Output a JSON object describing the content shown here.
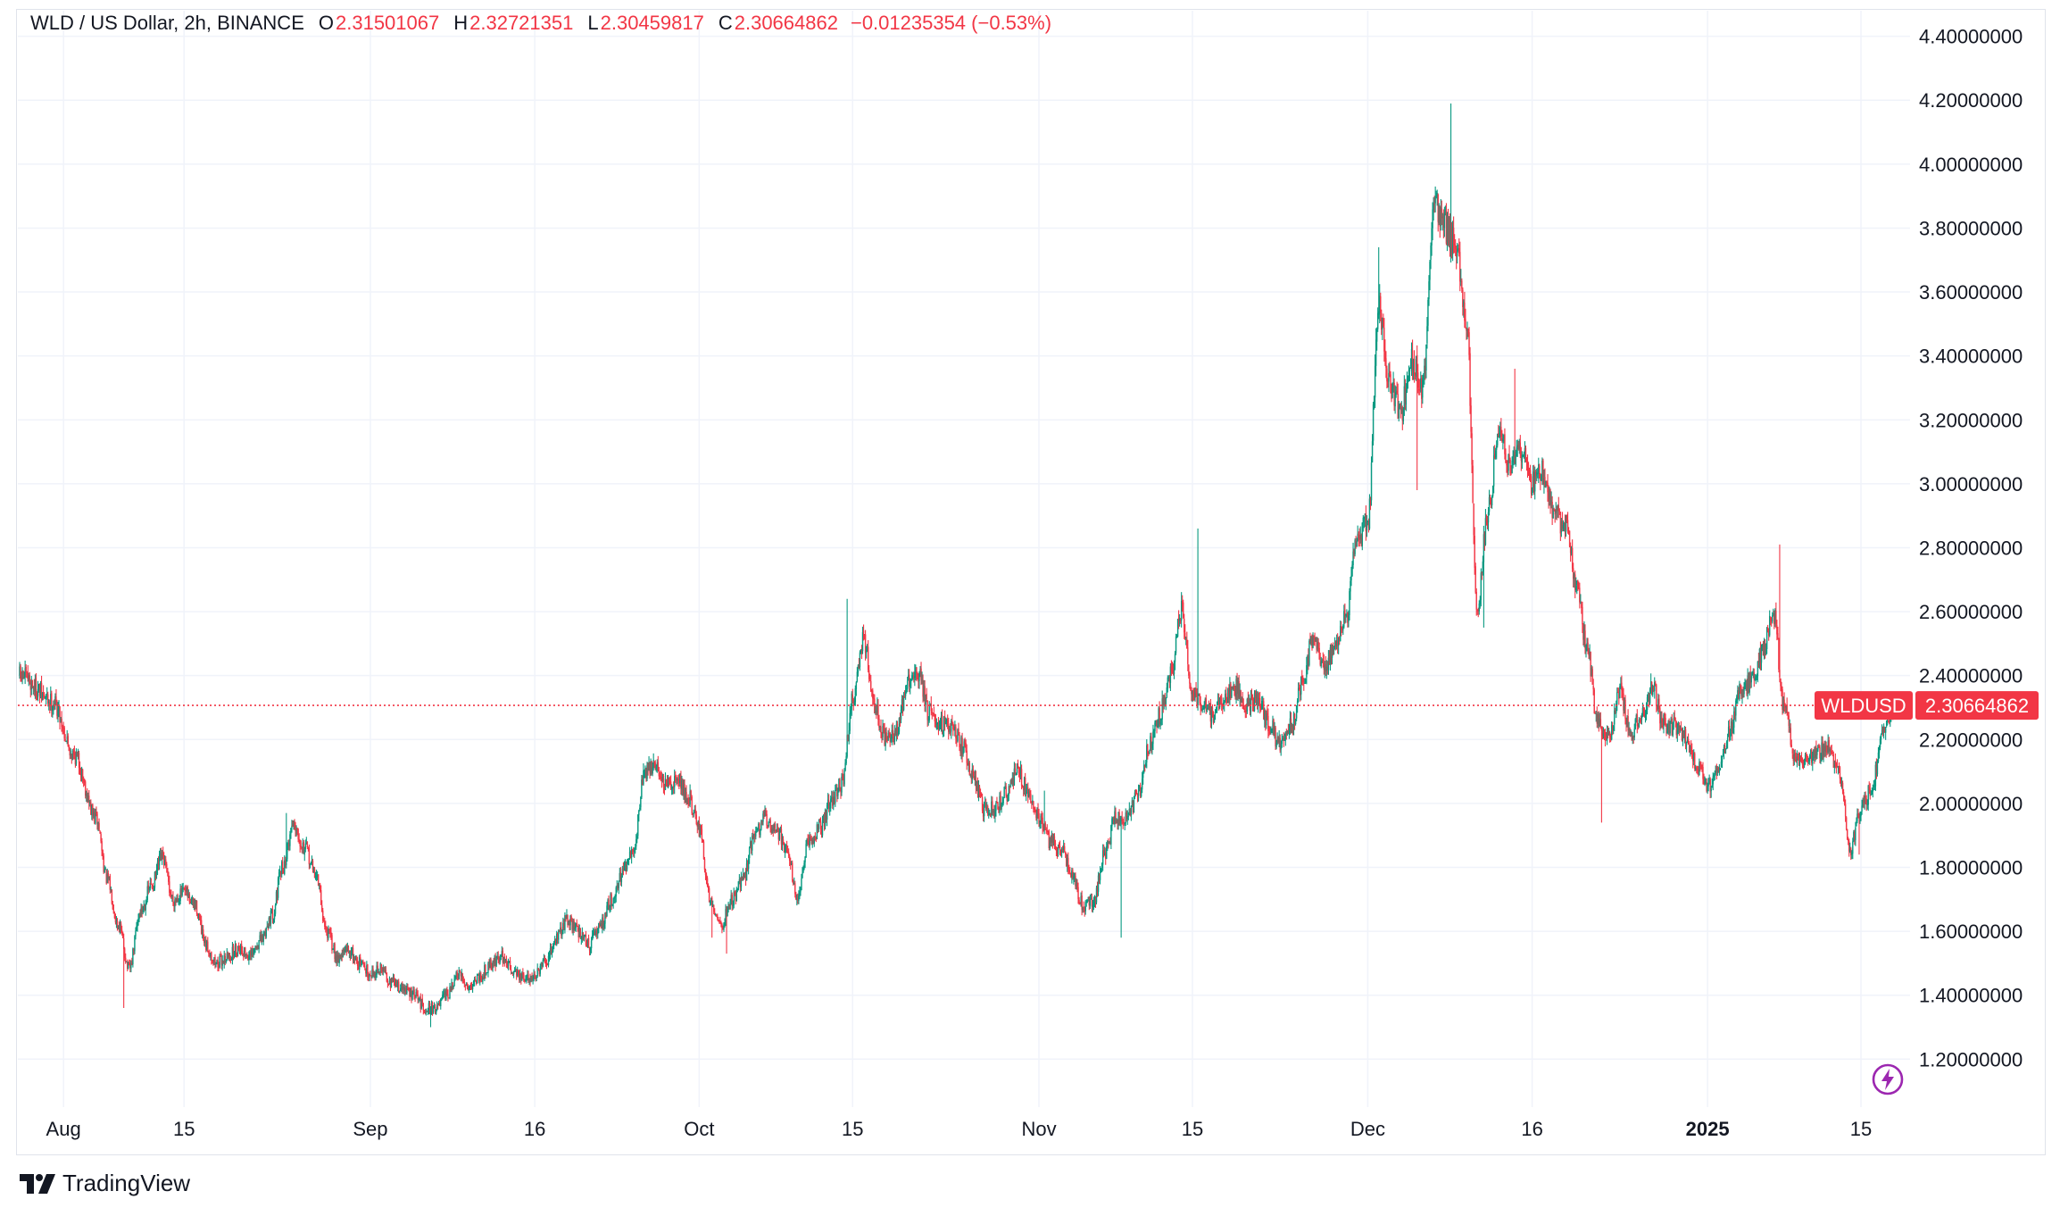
{
  "header": {
    "symbol_line": "WLD / US Dollar, 2h, BINANCE",
    "open_label": "O",
    "open_value": "2.31501067",
    "high_label": "H",
    "high_value": "2.32721351",
    "low_label": "L",
    "low_value": "2.30459817",
    "close_label": "C",
    "close_value": "2.30664862",
    "change": "−0.01235354 (−0.53%)"
  },
  "footer": {
    "brand": "TradingView"
  },
  "colors": {
    "up": "#089981",
    "down": "#f23645",
    "grid": "#f0f3fa",
    "axis_text": "#131722"
  },
  "chart_data": {
    "type": "candlestick",
    "title": "WLD / US Dollar, 2h, BINANCE",
    "ylim": [
      1.05,
      4.48
    ],
    "y_ticks": [
      "4.40000000",
      "4.20000000",
      "4.00000000",
      "3.80000000",
      "3.60000000",
      "3.40000000",
      "3.20000000",
      "3.00000000",
      "2.80000000",
      "2.60000000",
      "2.40000000",
      "2.20000000",
      "2.00000000",
      "1.80000000",
      "1.60000000",
      "1.40000000",
      "1.20000000"
    ],
    "x_ticks": [
      {
        "label": "Aug",
        "day": 4,
        "bold": false
      },
      {
        "label": "15",
        "day": 15,
        "bold": false
      },
      {
        "label": "Sep",
        "day": 32,
        "bold": false
      },
      {
        "label": "16",
        "day": 47,
        "bold": false
      },
      {
        "label": "Oct",
        "day": 62,
        "bold": false
      },
      {
        "label": "15",
        "day": 76,
        "bold": false
      },
      {
        "label": "Nov",
        "day": 93,
        "bold": false
      },
      {
        "label": "15",
        "day": 107,
        "bold": false
      },
      {
        "label": "Dec",
        "day": 123,
        "bold": false
      },
      {
        "label": "16",
        "day": 138,
        "bold": false
      },
      {
        "label": "2025",
        "day": 154,
        "bold": true
      },
      {
        "label": "15",
        "day": 168,
        "bold": false
      }
    ],
    "x_range_days": [
      0,
      171.5
    ],
    "price_anchors": [
      [
        0,
        2.4
      ],
      [
        3,
        2.32
      ],
      [
        5,
        2.15
      ],
      [
        7,
        1.95
      ],
      [
        8,
        1.76
      ],
      [
        9,
        1.62
      ],
      [
        10,
        1.48
      ],
      [
        11,
        1.66
      ],
      [
        12,
        1.74
      ],
      [
        13,
        1.83
      ],
      [
        14,
        1.7
      ],
      [
        15,
        1.72
      ],
      [
        16,
        1.68
      ],
      [
        17,
        1.55
      ],
      [
        18,
        1.5
      ],
      [
        19,
        1.52
      ],
      [
        20,
        1.55
      ],
      [
        21,
        1.52
      ],
      [
        22,
        1.57
      ],
      [
        23,
        1.65
      ],
      [
        24,
        1.8
      ],
      [
        25,
        1.94
      ],
      [
        26,
        1.86
      ],
      [
        27,
        1.78
      ],
      [
        28,
        1.6
      ],
      [
        29,
        1.52
      ],
      [
        30,
        1.54
      ],
      [
        31,
        1.5
      ],
      [
        32,
        1.47
      ],
      [
        33,
        1.48
      ],
      [
        34,
        1.44
      ],
      [
        35,
        1.42
      ],
      [
        36,
        1.4
      ],
      [
        37,
        1.36
      ],
      [
        38,
        1.36
      ],
      [
        39,
        1.4
      ],
      [
        40,
        1.46
      ],
      [
        41,
        1.43
      ],
      [
        42,
        1.46
      ],
      [
        43,
        1.5
      ],
      [
        44,
        1.52
      ],
      [
        45,
        1.48
      ],
      [
        46,
        1.45
      ],
      [
        47,
        1.46
      ],
      [
        48,
        1.5
      ],
      [
        49,
        1.58
      ],
      [
        50,
        1.64
      ],
      [
        51,
        1.6
      ],
      [
        52,
        1.56
      ],
      [
        53,
        1.62
      ],
      [
        54,
        1.7
      ],
      [
        55,
        1.78
      ],
      [
        56,
        1.85
      ],
      [
        57,
        2.1
      ],
      [
        58,
        2.12
      ],
      [
        59,
        2.05
      ],
      [
        60,
        2.08
      ],
      [
        61,
        2.02
      ],
      [
        62,
        1.92
      ],
      [
        63,
        1.7
      ],
      [
        64,
        1.62
      ],
      [
        65,
        1.7
      ],
      [
        66,
        1.76
      ],
      [
        67,
        1.9
      ],
      [
        68,
        1.95
      ],
      [
        69,
        1.92
      ],
      [
        70,
        1.86
      ],
      [
        71,
        1.7
      ],
      [
        72,
        1.88
      ],
      [
        73,
        1.92
      ],
      [
        74,
        2.0
      ],
      [
        75,
        2.06
      ],
      [
        76,
        2.32
      ],
      [
        77,
        2.52
      ],
      [
        78,
        2.3
      ],
      [
        79,
        2.2
      ],
      [
        80,
        2.22
      ],
      [
        81,
        2.38
      ],
      [
        82,
        2.4
      ],
      [
        83,
        2.28
      ],
      [
        84,
        2.26
      ],
      [
        85,
        2.24
      ],
      [
        86,
        2.18
      ],
      [
        87,
        2.08
      ],
      [
        88,
        1.98
      ],
      [
        89,
        1.98
      ],
      [
        90,
        2.03
      ],
      [
        91,
        2.1
      ],
      [
        92,
        2.04
      ],
      [
        93,
        1.96
      ],
      [
        94,
        1.88
      ],
      [
        95,
        1.86
      ],
      [
        96,
        1.78
      ],
      [
        97,
        1.68
      ],
      [
        98,
        1.7
      ],
      [
        99,
        1.84
      ],
      [
        100,
        1.96
      ],
      [
        101,
        1.95
      ],
      [
        102,
        2.02
      ],
      [
        103,
        2.18
      ],
      [
        104,
        2.28
      ],
      [
        105,
        2.4
      ],
      [
        106,
        2.6
      ],
      [
        107,
        2.34
      ],
      [
        108,
        2.3
      ],
      [
        109,
        2.28
      ],
      [
        110,
        2.34
      ],
      [
        111,
        2.36
      ],
      [
        112,
        2.3
      ],
      [
        113,
        2.33
      ],
      [
        114,
        2.25
      ],
      [
        115,
        2.18
      ],
      [
        116,
        2.24
      ],
      [
        117,
        2.38
      ],
      [
        118,
        2.52
      ],
      [
        119,
        2.44
      ],
      [
        120,
        2.48
      ],
      [
        121,
        2.58
      ],
      [
        122,
        2.82
      ],
      [
        123,
        2.88
      ],
      [
        124,
        3.55
      ],
      [
        125,
        3.3
      ],
      [
        126,
        3.22
      ],
      [
        127,
        3.4
      ],
      [
        128,
        3.3
      ],
      [
        129,
        3.88
      ],
      [
        130,
        3.8
      ],
      [
        131,
        3.75
      ],
      [
        132,
        3.5
      ],
      [
        133,
        2.62
      ],
      [
        134,
        2.92
      ],
      [
        135,
        3.18
      ],
      [
        136,
        3.05
      ],
      [
        137,
        3.1
      ],
      [
        138,
        3.0
      ],
      [
        139,
        3.04
      ],
      [
        140,
        2.92
      ],
      [
        141,
        2.86
      ],
      [
        142,
        2.7
      ],
      [
        143,
        2.48
      ],
      [
        144,
        2.25
      ],
      [
        145,
        2.2
      ],
      [
        146,
        2.35
      ],
      [
        147,
        2.22
      ],
      [
        148,
        2.28
      ],
      [
        149,
        2.36
      ],
      [
        150,
        2.25
      ],
      [
        151,
        2.24
      ],
      [
        152,
        2.2
      ],
      [
        153,
        2.12
      ],
      [
        154,
        2.05
      ],
      [
        155,
        2.1
      ],
      [
        156,
        2.22
      ],
      [
        157,
        2.35
      ],
      [
        158,
        2.38
      ],
      [
        159,
        2.48
      ],
      [
        160,
        2.6
      ],
      [
        161,
        2.3
      ],
      [
        162,
        2.15
      ],
      [
        163,
        2.14
      ],
      [
        164,
        2.16
      ],
      [
        165,
        2.18
      ],
      [
        166,
        2.1
      ],
      [
        167,
        1.86
      ],
      [
        168,
        1.98
      ],
      [
        169,
        2.05
      ],
      [
        170,
        2.22
      ],
      [
        171.3,
        2.31
      ]
    ],
    "spikes": [
      {
        "day": 9.5,
        "price": 1.36
      },
      {
        "day": 24.3,
        "price": 1.97
      },
      {
        "day": 37.5,
        "price": 1.3
      },
      {
        "day": 63.2,
        "price": 1.58
      },
      {
        "day": 64.5,
        "price": 1.53
      },
      {
        "day": 75.5,
        "price": 2.64
      },
      {
        "day": 93.5,
        "price": 2.04
      },
      {
        "day": 100.5,
        "price": 1.58
      },
      {
        "day": 107.5,
        "price": 2.86
      },
      {
        "day": 124.0,
        "price": 3.74
      },
      {
        "day": 127.5,
        "price": 2.98
      },
      {
        "day": 130.6,
        "price": 4.19
      },
      {
        "day": 133.6,
        "price": 2.55
      },
      {
        "day": 136.4,
        "price": 3.36
      },
      {
        "day": 144.3,
        "price": 1.94
      },
      {
        "day": 160.6,
        "price": 2.81
      },
      {
        "day": 167.8,
        "price": 1.84
      }
    ],
    "last_price": 2.30664862,
    "last_label": "2.30664862",
    "symbol_tag": "WLDUSD"
  }
}
